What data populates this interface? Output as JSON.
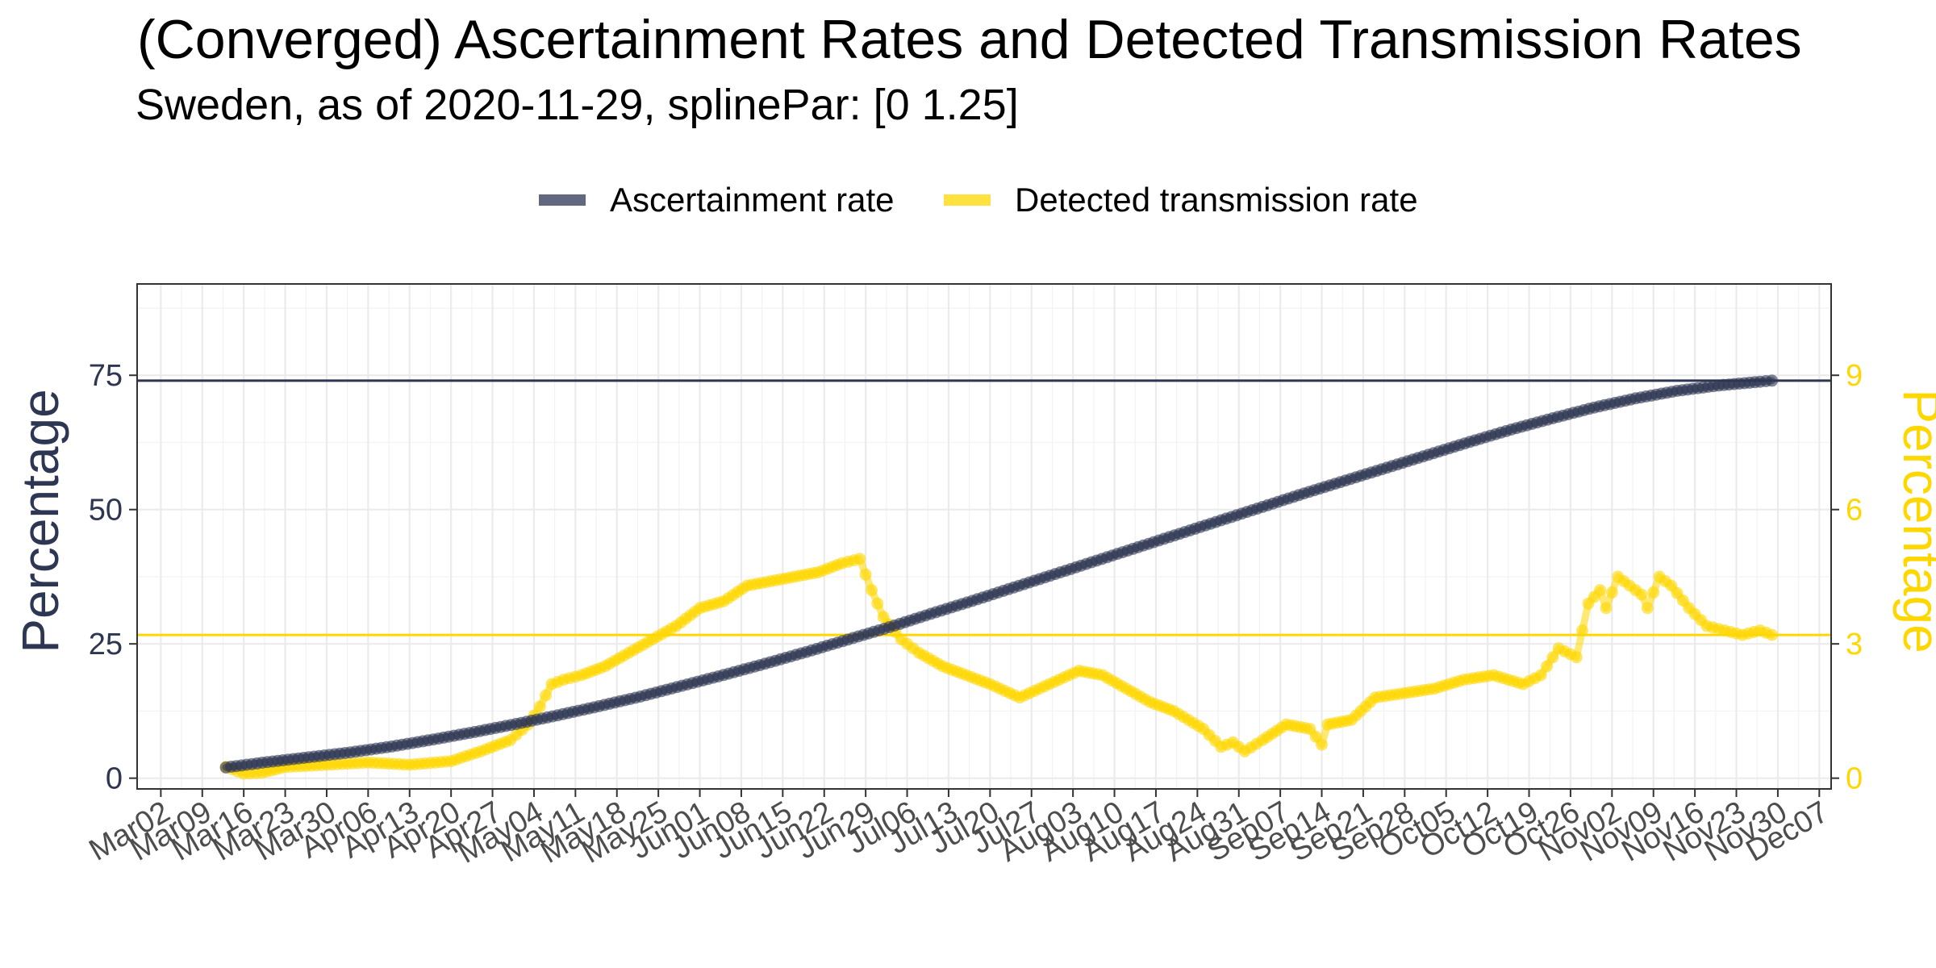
{
  "title": "(Converged) Ascertainment Rates and Detected Transmission Rates",
  "subtitle": "Sweden, as of 2020-11-29, splinePar: [0 1.25]",
  "chart_data": {
    "type": "line",
    "xlabel": "",
    "ylabel_left": "Percentage",
    "ylabel_right": "Percentage",
    "ylim_left": [
      -2,
      92
    ],
    "ylim_right": [
      -0.24,
      11.04
    ],
    "yticks_left": [
      0,
      25,
      50,
      75
    ],
    "yticks_right": [
      0,
      3,
      6,
      9
    ],
    "ytick_labels_left": [
      "0",
      "25",
      "50",
      "75"
    ],
    "ytick_labels_right": [
      "0",
      "3",
      "6",
      "9"
    ],
    "xlim": [
      "2020-02-27",
      "2020-12-09"
    ],
    "xticks": [
      "2020-03-02",
      "2020-03-09",
      "2020-03-16",
      "2020-03-23",
      "2020-03-30",
      "2020-04-06",
      "2020-04-13",
      "2020-04-20",
      "2020-04-27",
      "2020-05-04",
      "2020-05-11",
      "2020-05-18",
      "2020-05-25",
      "2020-06-01",
      "2020-06-08",
      "2020-06-15",
      "2020-06-22",
      "2020-06-29",
      "2020-07-06",
      "2020-07-13",
      "2020-07-20",
      "2020-07-27",
      "2020-08-03",
      "2020-08-10",
      "2020-08-17",
      "2020-08-24",
      "2020-08-31",
      "2020-09-07",
      "2020-09-14",
      "2020-09-21",
      "2020-09-28",
      "2020-10-05",
      "2020-10-12",
      "2020-10-19",
      "2020-10-26",
      "2020-11-02",
      "2020-11-09",
      "2020-11-16",
      "2020-11-23",
      "2020-11-30",
      "2020-12-07"
    ],
    "xtick_labels": [
      "Mar02",
      "Mar09",
      "Mar16",
      "Mar23",
      "Mar30",
      "Apr06",
      "Apr13",
      "Apr20",
      "Apr27",
      "May04",
      "May11",
      "May18",
      "May25",
      "Jun01",
      "Jun08",
      "Jun15",
      "Jun22",
      "Jun29",
      "Jul06",
      "Jul13",
      "Jul20",
      "Jul27",
      "Aug03",
      "Aug10",
      "Aug17",
      "Aug24",
      "Aug31",
      "Sep07",
      "Sep14",
      "Sep21",
      "Sep28",
      "Oct05",
      "Oct12",
      "Oct19",
      "Oct26",
      "Nov02",
      "Nov09",
      "Nov16",
      "Nov23",
      "Nov30",
      "Dec07"
    ],
    "grid": true,
    "legend_placement": "top",
    "hlines": [
      {
        "series": "Ascertainment rate",
        "axis": "left",
        "value": 74
      },
      {
        "series": "Detected transmission rate",
        "axis": "right",
        "value": 3.2
      }
    ],
    "series": [
      {
        "name": "Ascertainment rate",
        "color": "#2D3652",
        "axis": "left",
        "x": [
          "2020-03-13",
          "2020-03-20",
          "2020-03-27",
          "2020-04-03",
          "2020-04-10",
          "2020-04-17",
          "2020-04-24",
          "2020-05-01",
          "2020-05-08",
          "2020-05-15",
          "2020-05-22",
          "2020-05-29",
          "2020-06-05",
          "2020-06-12",
          "2020-06-19",
          "2020-06-26",
          "2020-07-03",
          "2020-07-10",
          "2020-07-17",
          "2020-07-24",
          "2020-07-31",
          "2020-08-07",
          "2020-08-14",
          "2020-08-21",
          "2020-08-28",
          "2020-09-04",
          "2020-09-11",
          "2020-09-18",
          "2020-09-25",
          "2020-10-02",
          "2020-10-09",
          "2020-10-16",
          "2020-10-23",
          "2020-10-30",
          "2020-11-06",
          "2020-11-13",
          "2020-11-20",
          "2020-11-27",
          "2020-11-29"
        ],
        "values": [
          2.0,
          3.0,
          3.9,
          4.8,
          5.9,
          7.2,
          8.6,
          10.1,
          11.7,
          13.4,
          15.2,
          17.2,
          19.2,
          21.3,
          23.5,
          25.8,
          28.1,
          30.6,
          33.0,
          35.5,
          38.0,
          40.5,
          43.0,
          45.5,
          48.0,
          50.5,
          53.0,
          55.4,
          57.8,
          60.2,
          62.6,
          64.9,
          67.0,
          69.0,
          70.7,
          72.1,
          73.1,
          73.8,
          74.0
        ]
      },
      {
        "name": "Detected transmission rate",
        "color": "#FFD700",
        "axis": "right",
        "x": [
          "2020-03-13",
          "2020-03-16",
          "2020-03-19",
          "2020-03-23",
          "2020-03-30",
          "2020-04-06",
          "2020-04-13",
          "2020-04-20",
          "2020-04-25",
          "2020-04-30",
          "2020-05-03",
          "2020-05-05",
          "2020-05-07",
          "2020-05-09",
          "2020-05-12",
          "2020-05-16",
          "2020-05-20",
          "2020-05-24",
          "2020-05-28",
          "2020-06-01",
          "2020-06-05",
          "2020-06-09",
          "2020-06-13",
          "2020-06-17",
          "2020-06-21",
          "2020-06-25",
          "2020-06-28",
          "2020-06-30",
          "2020-07-02",
          "2020-07-05",
          "2020-07-08",
          "2020-07-12",
          "2020-07-16",
          "2020-07-20",
          "2020-07-25",
          "2020-07-30",
          "2020-08-04",
          "2020-08-08",
          "2020-08-12",
          "2020-08-16",
          "2020-08-20",
          "2020-08-25",
          "2020-08-28",
          "2020-08-30",
          "2020-09-01",
          "2020-09-04",
          "2020-09-08",
          "2020-09-12",
          "2020-09-14",
          "2020-09-15",
          "2020-09-19",
          "2020-09-23",
          "2020-09-28",
          "2020-10-03",
          "2020-10-08",
          "2020-10-13",
          "2020-10-18",
          "2020-10-21",
          "2020-10-24",
          "2020-10-27",
          "2020-10-29",
          "2020-10-31",
          "2020-11-01",
          "2020-11-03",
          "2020-11-05",
          "2020-11-07",
          "2020-11-08",
          "2020-11-10",
          "2020-11-12",
          "2020-11-15",
          "2020-11-18",
          "2020-11-21",
          "2020-11-24",
          "2020-11-27",
          "2020-11-29"
        ],
        "values": [
          0.25,
          0.1,
          0.12,
          0.25,
          0.3,
          0.35,
          0.3,
          0.38,
          0.6,
          0.85,
          1.2,
          1.6,
          2.1,
          2.2,
          2.3,
          2.5,
          2.8,
          3.1,
          3.4,
          3.8,
          3.95,
          4.3,
          4.4,
          4.5,
          4.6,
          4.8,
          4.9,
          4.2,
          3.6,
          3.1,
          2.8,
          2.5,
          2.3,
          2.1,
          1.8,
          2.1,
          2.4,
          2.3,
          2.0,
          1.7,
          1.5,
          1.1,
          0.7,
          0.8,
          0.6,
          0.85,
          1.2,
          1.1,
          0.75,
          1.2,
          1.3,
          1.8,
          1.9,
          2.0,
          2.2,
          2.3,
          2.1,
          2.3,
          2.9,
          2.7,
          3.9,
          4.2,
          3.8,
          4.5,
          4.3,
          4.1,
          3.8,
          4.5,
          4.3,
          3.8,
          3.4,
          3.3,
          3.2,
          3.3,
          3.2
        ]
      }
    ]
  }
}
